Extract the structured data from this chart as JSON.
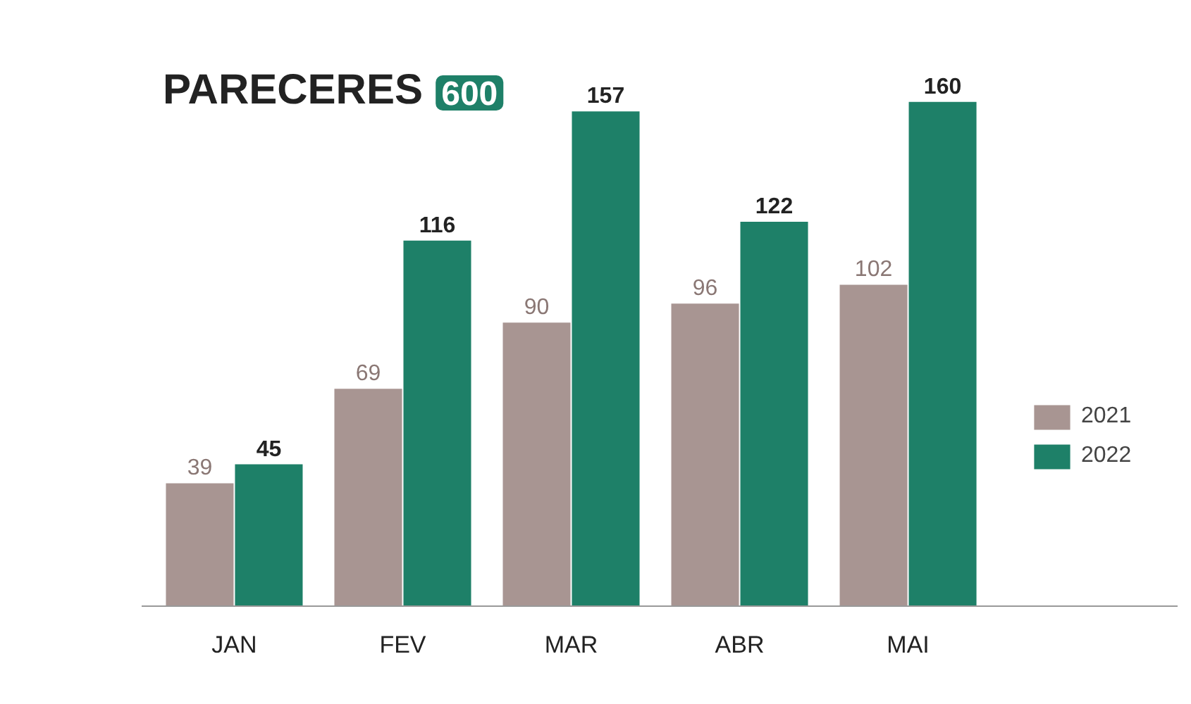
{
  "chart_data": {
    "type": "bar",
    "title": "PARECERES",
    "subtitle": "600",
    "categories": [
      "JAN",
      "FEV",
      "MAR",
      "ABR",
      "MAI"
    ],
    "series": [
      {
        "name": "2021",
        "color": "#a89592",
        "values": [
          39,
          69,
          90,
          96,
          102
        ]
      },
      {
        "name": "2022",
        "color": "#1e8068",
        "values": [
          45,
          116,
          157,
          122,
          160
        ]
      }
    ],
    "data_labels": true,
    "legend": "right",
    "grid": false
  }
}
